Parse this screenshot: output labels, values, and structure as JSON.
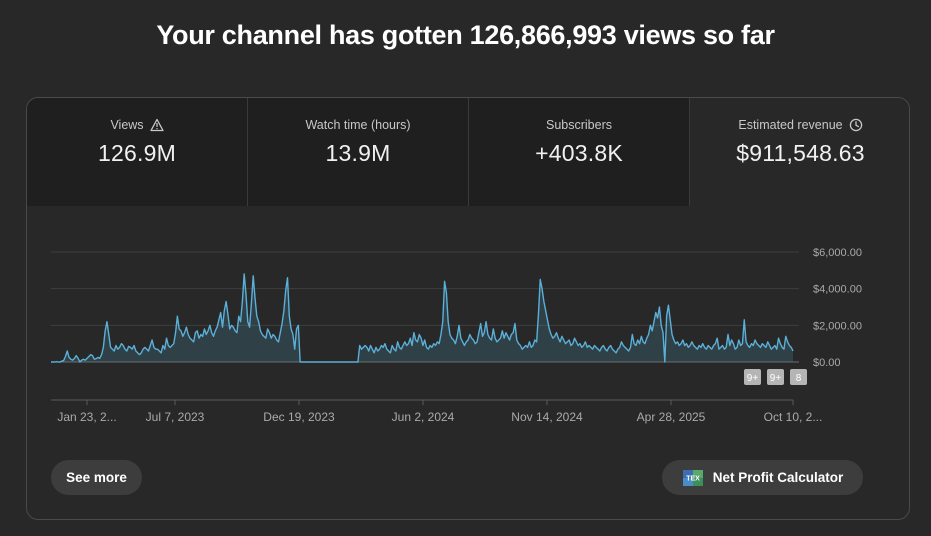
{
  "headline": "Your channel has gotten 126,866,993 views so far",
  "metrics": [
    {
      "label": "Views",
      "value": "126.9M",
      "icon": "warning-icon"
    },
    {
      "label": "Watch time (hours)",
      "value": "13.9M"
    },
    {
      "label": "Subscribers",
      "value": "+403.8K"
    },
    {
      "label": "Estimated revenue",
      "value": "$911,548.63",
      "icon": "clock-icon",
      "selected": true
    }
  ],
  "chart_data": {
    "type": "area",
    "title": "",
    "xlabel": "",
    "ylabel": "",
    "y_tick_labels": [
      "$6,000.00",
      "$4,000.00",
      "$2,000.00",
      "$0.00"
    ],
    "ylim": [
      0,
      6000
    ],
    "x_tick_labels": [
      "Jan 23, 2...",
      "Jul 7, 2023",
      "Dec 19, 2023",
      "Jun 2, 2024",
      "Nov 14, 2024",
      "Apr 28, 2025",
      "Oct 10, 2..."
    ],
    "x_range": [
      "2023-01-23",
      "2025-11-10"
    ],
    "grid": true,
    "color": "#5ab0d8",
    "series": [
      {
        "values": [
          0,
          0,
          0,
          20,
          0,
          0,
          50,
          80,
          300,
          600,
          250,
          150,
          100,
          200,
          350,
          200,
          0,
          100,
          150,
          100,
          200,
          300,
          400,
          350,
          150,
          180,
          250,
          200,
          400,
          800,
          1700,
          2200,
          1500,
          800,
          700,
          600,
          900,
          700,
          800,
          1000,
          900,
          700,
          600,
          850,
          800,
          700,
          900,
          600,
          500,
          400,
          500,
          700,
          800,
          700,
          600,
          900,
          1200,
          800,
          700,
          700,
          600,
          500,
          900,
          700,
          1300,
          900,
          800,
          900,
          1000,
          1600,
          2500,
          1800,
          1700,
          1400,
          1600,
          1900,
          1500,
          1300,
          1200,
          1100,
          1600,
          1700,
          1300,
          1500,
          1400,
          1800,
          1500,
          1700,
          2000,
          1600,
          1400,
          1700,
          1900,
          2300,
          2700,
          1900,
          2800,
          3300,
          2600,
          1800,
          2000,
          1900,
          1700,
          1600,
          2500,
          2200,
          3300,
          4800,
          3700,
          2200,
          1900,
          3200,
          4700,
          3500,
          2500,
          2200,
          1700,
          1500,
          1400,
          1300,
          1800,
          1600,
          1300,
          1500,
          1400,
          1200,
          1100,
          1600,
          2100,
          2800,
          3900,
          4600,
          2500,
          1800,
          1500,
          700,
          1800,
          2000,
          0,
          0,
          0,
          0,
          0,
          0,
          0,
          0,
          0,
          0,
          0,
          0,
          0,
          0,
          0,
          0,
          0,
          0,
          0,
          0,
          0,
          0,
          0,
          0,
          0,
          0,
          0,
          0,
          0,
          0,
          0,
          0,
          0,
          900,
          700,
          800,
          900,
          800,
          600,
          900,
          700,
          500,
          800,
          600,
          700,
          900,
          800,
          1000,
          700,
          600,
          500,
          900,
          700,
          600,
          1100,
          800,
          700,
          900,
          1100,
          900,
          1000,
          1300,
          900,
          1600,
          1200,
          1100,
          1500,
          1300,
          900,
          1200,
          800,
          700,
          900,
          800,
          1000,
          900,
          1100,
          1000,
          1500,
          2200,
          4400,
          3800,
          2200,
          1500,
          1300,
          1200,
          1000,
          1400,
          2000,
          1300,
          1100,
          900,
          1100,
          1200,
          1500,
          1300,
          1200,
          1000,
          1100,
          1600,
          2100,
          1400,
          1600,
          2200,
          1500,
          1300,
          1200,
          1800,
          1300,
          1100,
          1200,
          1300,
          1700,
          1300,
          1600,
          1400,
          1200,
          1500,
          1600,
          2100,
          1200,
          1000,
          900,
          700,
          800,
          900,
          800,
          1100,
          800,
          900,
          1200,
          1100,
          2600,
          4500,
          4000,
          3300,
          2800,
          2300,
          1800,
          1500,
          1300,
          1400,
          1600,
          1300,
          1100,
          1400,
          1200,
          1000,
          1100,
          1200,
          900,
          1000,
          1300,
          1100,
          900,
          1000,
          800,
          900,
          1100,
          800,
          900,
          800,
          700,
          900,
          800,
          700,
          600,
          800,
          900,
          700,
          600,
          800,
          900,
          700,
          600,
          500,
          700,
          800,
          1100,
          900,
          800,
          700,
          600,
          800,
          1500,
          1000,
          900,
          1200,
          1000,
          1400,
          1100,
          1000,
          1300,
          1500,
          2000,
          1700,
          2200,
          2700,
          2400,
          3000,
          2000,
          1600,
          0,
          2500,
          3100,
          2300,
          1500,
          1200,
          1000,
          1100,
          900,
          1000,
          1200,
          900,
          1000,
          800,
          900,
          1100,
          900,
          800,
          700,
          900,
          800,
          1000,
          800,
          700,
          900,
          800,
          700,
          900,
          1000,
          1300,
          700,
          800,
          900,
          700,
          800,
          1500,
          900,
          1200,
          1000,
          700,
          800,
          1200,
          900,
          1000,
          2300,
          1100,
          900,
          800,
          1000,
          900,
          1200,
          1000,
          900,
          800,
          1000,
          900,
          800,
          1100,
          900,
          700,
          800,
          900,
          700,
          1300,
          1000,
          800,
          700,
          1400,
          1100,
          900,
          800,
          600
        ]
      }
    ]
  },
  "chart_badges": [
    "9+",
    "9+",
    "8"
  ],
  "buttons": {
    "see_more": "See more",
    "net_profit": "Net Profit Calculator"
  },
  "logo_text": "TEX"
}
